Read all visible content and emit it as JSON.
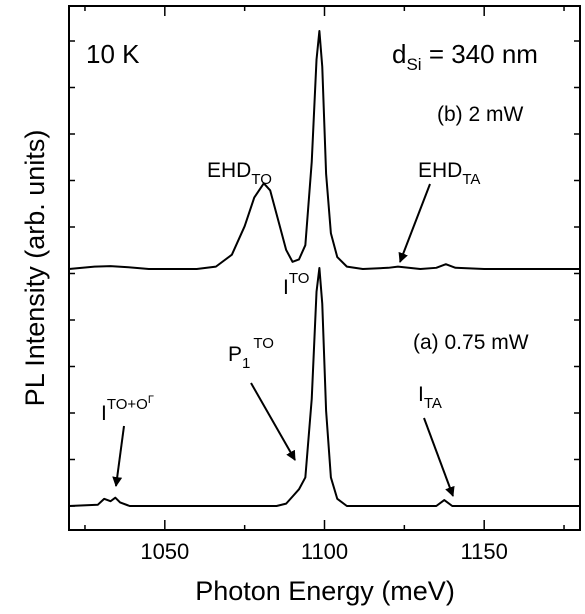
{
  "chart_data": {
    "type": "line",
    "xlabel": "Photon Energy (meV)",
    "ylabel": "PL Intensity (arb. units)",
    "xlim": [
      1020,
      1180
    ],
    "xticks": [
      1050,
      1100,
      1150
    ],
    "grid": false,
    "legend": "none",
    "annotations": {
      "temperature": "10 K",
      "thickness_main": "d",
      "thickness_sub": "Si",
      "thickness_value": " = 340 nm",
      "label_b": "(b) 2 mW",
      "label_a": "(a) 0.75 mW",
      "ehd_to_main": "EHD",
      "ehd_to_sub": "TO",
      "ehd_ta_main": "EHD",
      "ehd_ta_sub": "TA",
      "ito_main": "I",
      "ito_sup": "TO",
      "p1to_main": "P",
      "p1to_sub": "1",
      "p1to_sup": "TO",
      "ito_og_main": "I",
      "ito_og_sup": "TO+O",
      "ito_og_sup2": "Γ",
      "ita_main": "I",
      "ita_sub": "TA"
    },
    "series": [
      {
        "label": "(b) 2 mW",
        "points": [
          [
            1020,
            0.0
          ],
          [
            1028,
            0.01
          ],
          [
            1033,
            0.012
          ],
          [
            1038,
            0.008
          ],
          [
            1045,
            0.0
          ],
          [
            1060,
            0.0
          ],
          [
            1066,
            0.01
          ],
          [
            1071,
            0.06
          ],
          [
            1075,
            0.18
          ],
          [
            1078,
            0.3
          ],
          [
            1081,
            0.36
          ],
          [
            1083,
            0.33
          ],
          [
            1086,
            0.18
          ],
          [
            1088,
            0.08
          ],
          [
            1090,
            0.03
          ],
          [
            1092,
            0.04
          ],
          [
            1094,
            0.1
          ],
          [
            1096,
            0.45
          ],
          [
            1097.5,
            0.88
          ],
          [
            1098.4,
            1.0
          ],
          [
            1099.3,
            0.85
          ],
          [
            1100.5,
            0.4
          ],
          [
            1102,
            0.15
          ],
          [
            1104,
            0.05
          ],
          [
            1107,
            0.01
          ],
          [
            1112,
            0.0
          ],
          [
            1120,
            0.005
          ],
          [
            1123,
            0.01
          ],
          [
            1130,
            0.0
          ],
          [
            1135,
            0.005
          ],
          [
            1138,
            0.02
          ],
          [
            1141,
            0.005
          ],
          [
            1150,
            0.0
          ],
          [
            1180,
            0.0
          ]
        ]
      },
      {
        "label": "(a) 0.75 mW",
        "points": [
          [
            1020,
            0.0
          ],
          [
            1029,
            0.005
          ],
          [
            1031,
            0.03
          ],
          [
            1033,
            0.02
          ],
          [
            1034.5,
            0.035
          ],
          [
            1036,
            0.015
          ],
          [
            1039,
            0.0
          ],
          [
            1085,
            0.0
          ],
          [
            1088,
            0.01
          ],
          [
            1090,
            0.04
          ],
          [
            1092,
            0.07
          ],
          [
            1094,
            0.12
          ],
          [
            1096,
            0.45
          ],
          [
            1097.5,
            0.9
          ],
          [
            1098.4,
            1.0
          ],
          [
            1099.3,
            0.85
          ],
          [
            1100.5,
            0.4
          ],
          [
            1102,
            0.12
          ],
          [
            1104,
            0.03
          ],
          [
            1107,
            0.0
          ],
          [
            1135,
            0.0
          ],
          [
            1137.5,
            0.025
          ],
          [
            1140,
            0.0
          ],
          [
            1180,
            0.0
          ]
        ]
      }
    ]
  }
}
